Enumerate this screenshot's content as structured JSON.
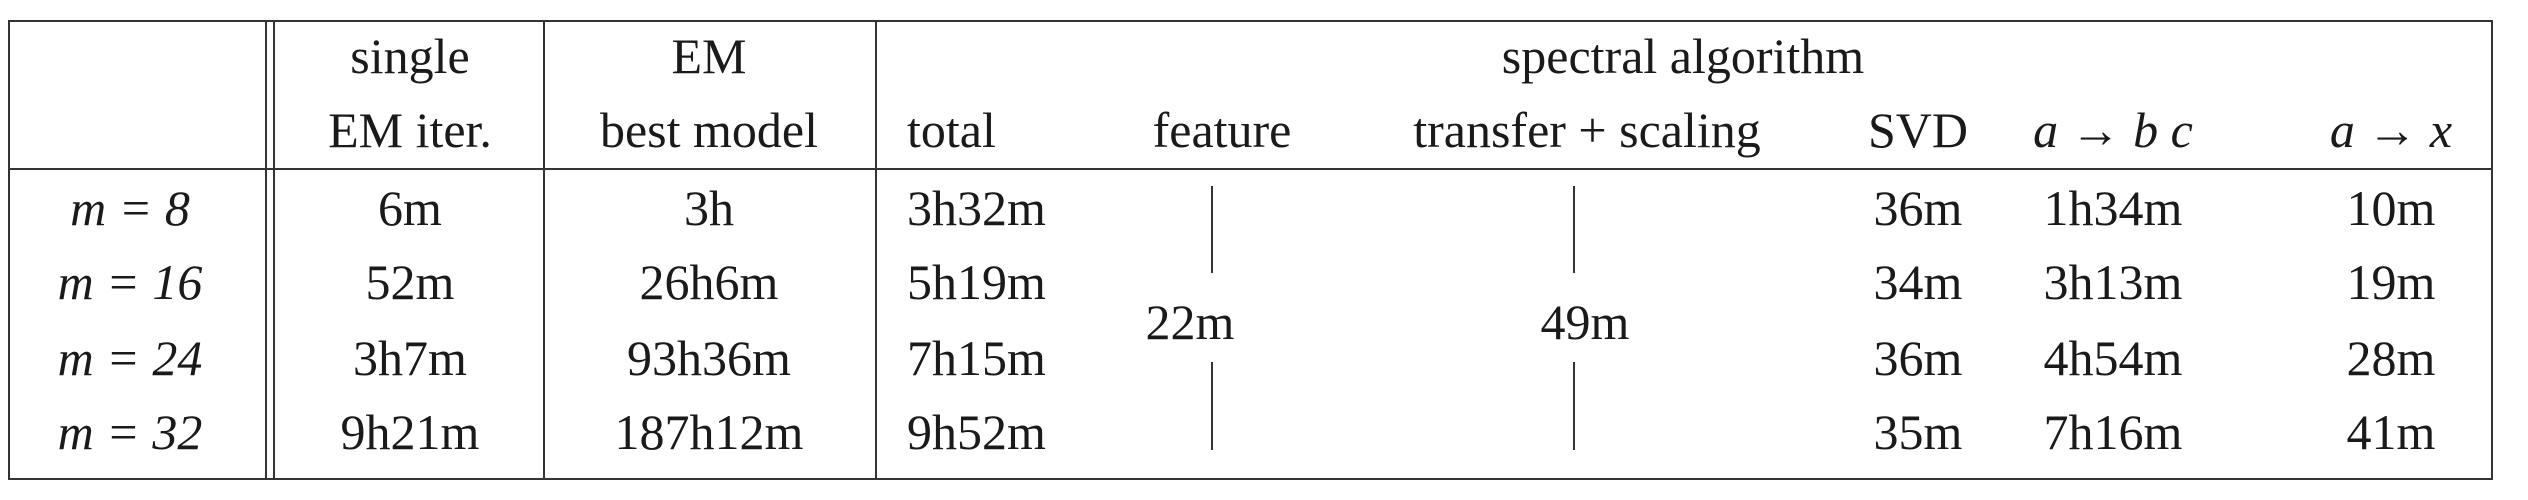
{
  "header": {
    "single_l1": "single",
    "single_l2": "EM iter.",
    "em_l1": "EM",
    "em_l2": "best model",
    "spectral": "spectral algorithm",
    "total": "total",
    "feature": "feature",
    "transfer": "transfer + scaling",
    "svd": "SVD",
    "abc": "a → b c",
    "ax": "a → x"
  },
  "rows": [
    {
      "m": "m = 8",
      "single": "6m",
      "em": "3h",
      "total": "3h32m",
      "svd": "36m",
      "abc": "1h34m",
      "ax": "10m"
    },
    {
      "m": "m = 16",
      "single": "52m",
      "em": "26h6m",
      "total": "5h19m",
      "svd": "34m",
      "abc": "3h13m",
      "ax": "19m"
    },
    {
      "m": "m = 24",
      "single": "3h7m",
      "em": "93h36m",
      "total": "7h15m",
      "svd": "36m",
      "abc": "4h54m",
      "ax": "28m"
    },
    {
      "m": "m = 32",
      "single": "9h21m",
      "em": "187h12m",
      "total": "9h52m",
      "svd": "35m",
      "abc": "7h16m",
      "ax": "41m"
    }
  ],
  "shared": {
    "feature": "22m",
    "transfer": "49m"
  }
}
